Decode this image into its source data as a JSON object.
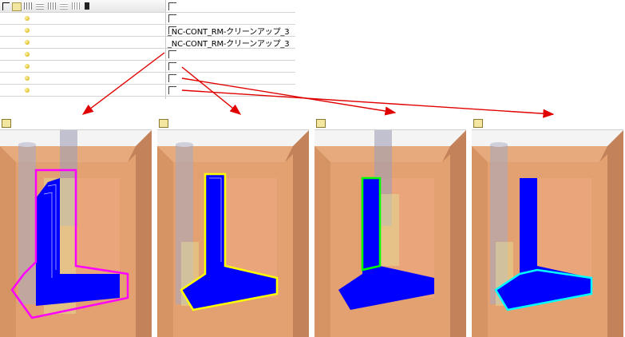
{
  "tree": {
    "rows": [
      {
        "name": "",
        "checked": false
      },
      {
        "name": "",
        "checked": false
      },
      {
        "name": "_NC-CONT_RM-クリーンアップ_3",
        "checked": false
      },
      {
        "name": "",
        "checked": false
      },
      {
        "name": "",
        "checked": false
      },
      {
        "name": "",
        "checked": false
      },
      {
        "name": "",
        "checked": false
      }
    ]
  },
  "panels": [
    {
      "label": "",
      "highlight_color": "#ff00ff"
    },
    {
      "label": "",
      "highlight_color": "#ffff00"
    },
    {
      "label": "",
      "highlight_color": "#00ff00"
    },
    {
      "label": "",
      "highlight_color": "#00ffff"
    }
  ],
  "colors": {
    "arrow": "#e00000",
    "toolpath": "#0000ff",
    "part": "#e3a070",
    "tool_body": "#9f9fb6",
    "tool_holder": "#e4e49a"
  }
}
